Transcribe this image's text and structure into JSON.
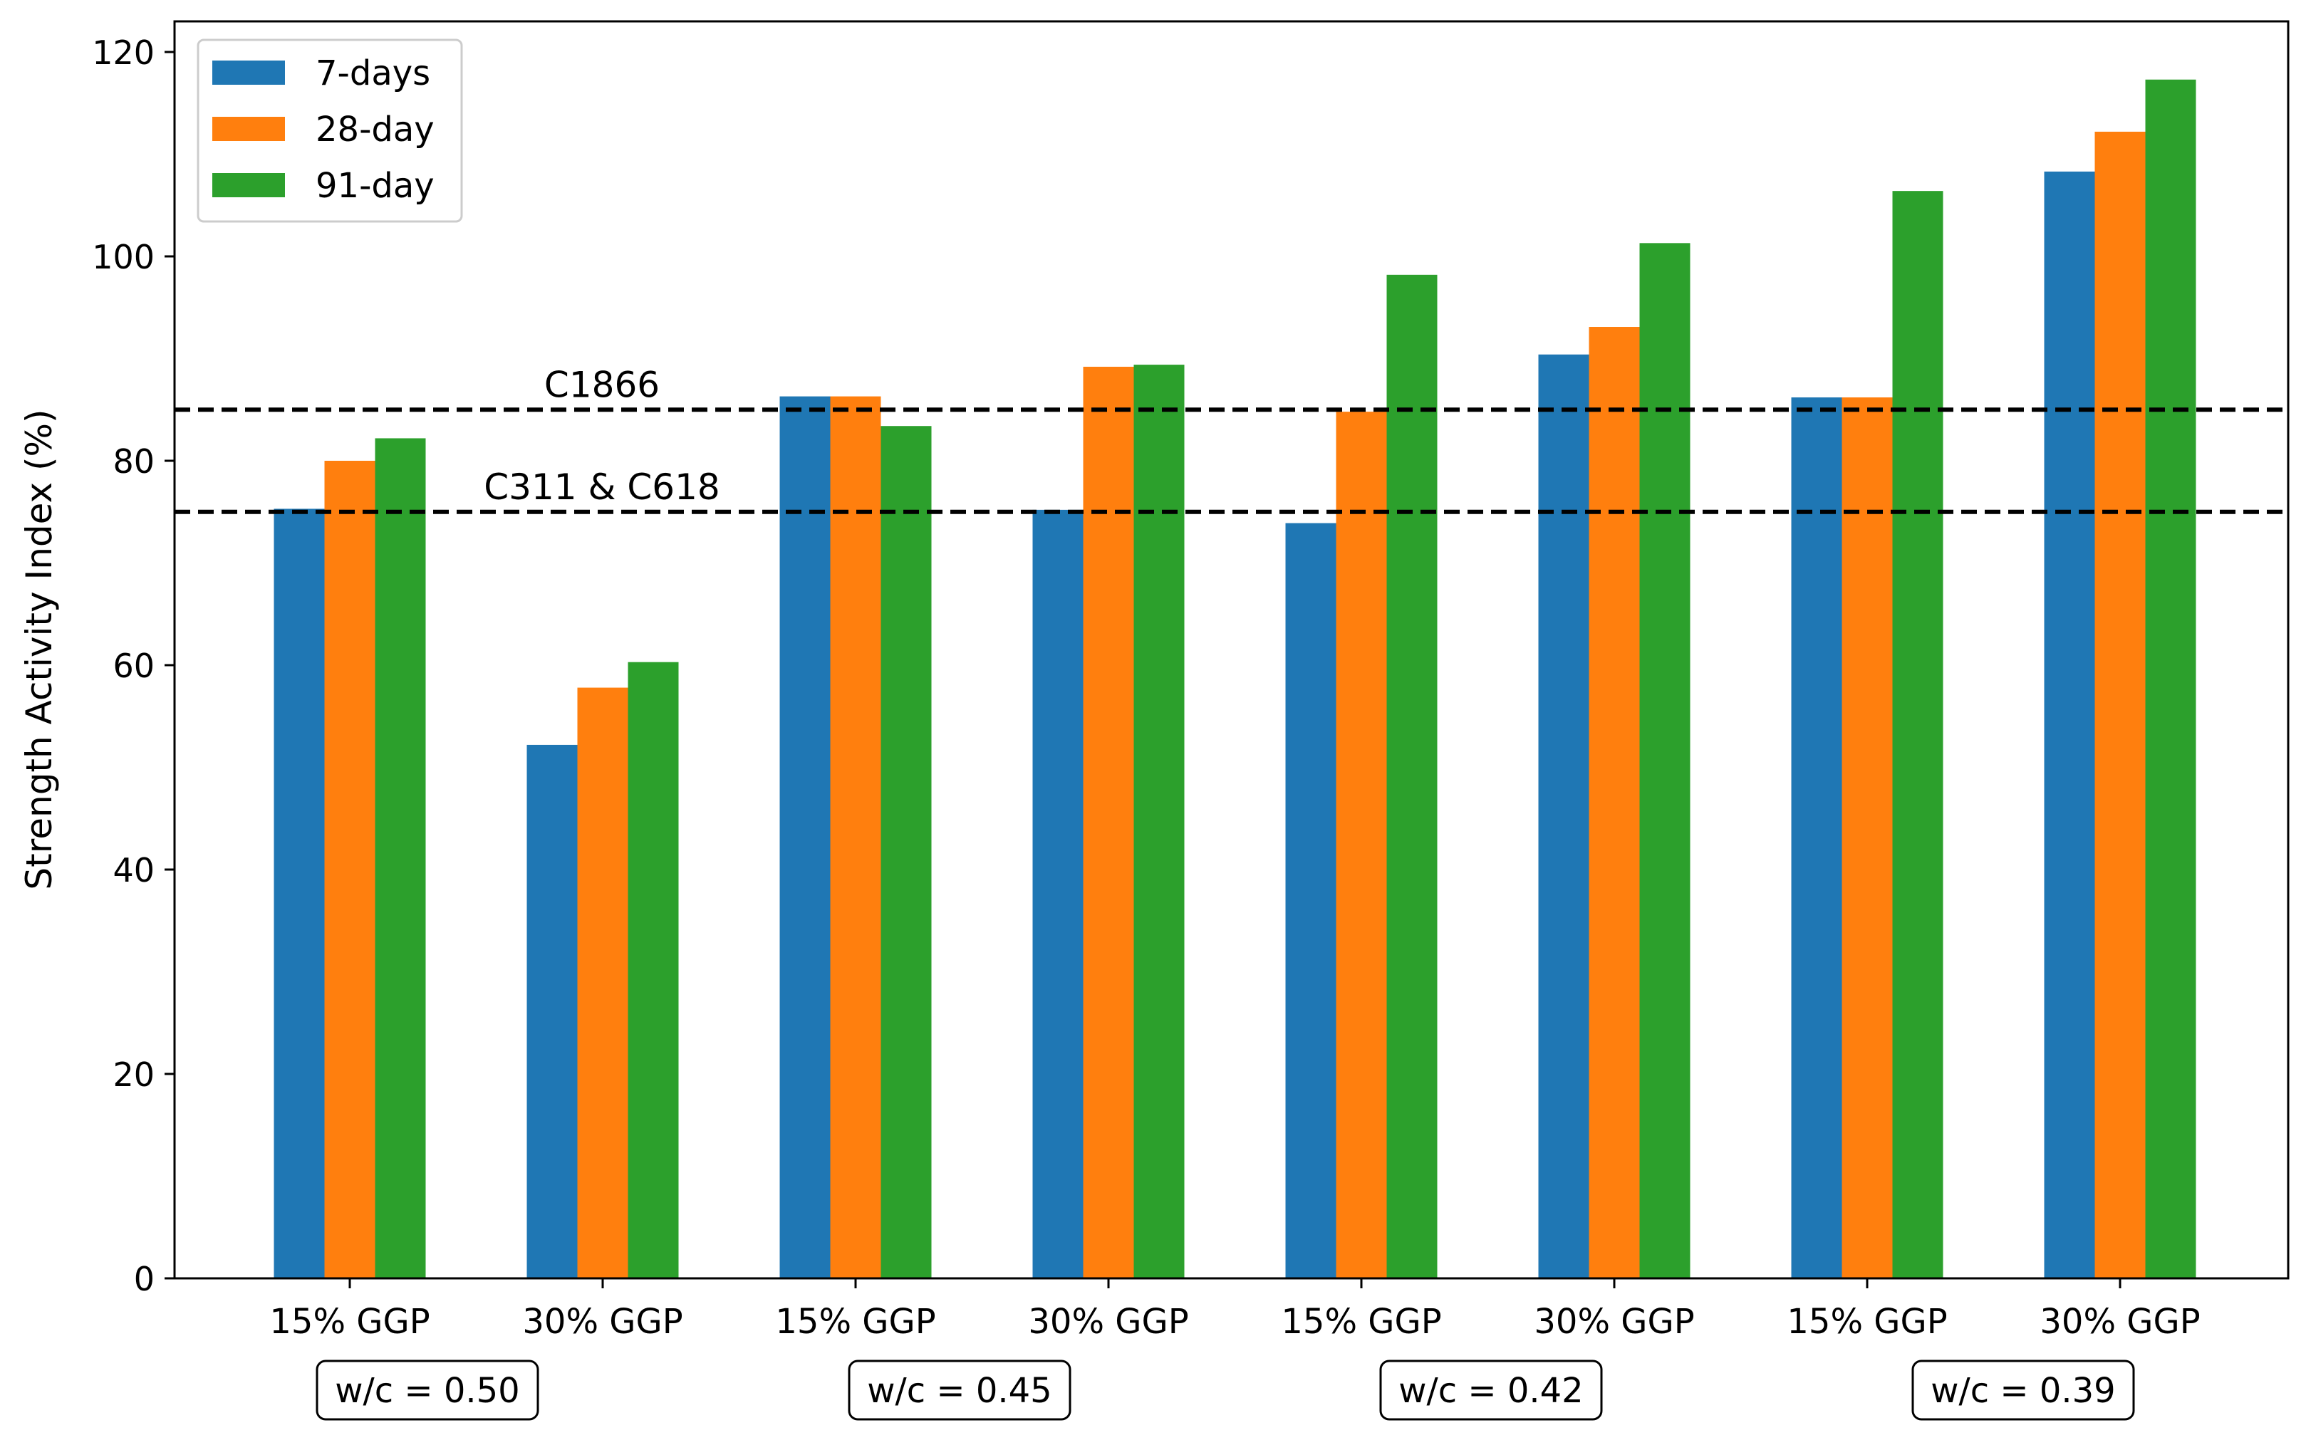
{
  "chart_data": {
    "type": "bar",
    "title": "",
    "xlabel": "",
    "ylabel": "Strength Activity Index (%)",
    "ylim": [
      0,
      123
    ],
    "yticks": [
      0,
      20,
      40,
      60,
      80,
      100,
      120
    ],
    "grid": false,
    "legend_position": "top-left",
    "categories": [
      "15% GGP",
      "30% GGP",
      "15% GGP",
      "30% GGP",
      "15% GGP",
      "30% GGP",
      "15% GGP",
      "30% GGP"
    ],
    "series": [
      {
        "name": "7-days",
        "color": "#1f77b4",
        "values": [
          75.3,
          52.2,
          86.3,
          75.2,
          73.9,
          90.4,
          86.2,
          108.3
        ]
      },
      {
        "name": "28-day",
        "color": "#ff7f0e",
        "values": [
          80.0,
          57.8,
          86.3,
          89.2,
          84.8,
          93.1,
          86.2,
          112.2
        ]
      },
      {
        "name": "91-day",
        "color": "#2ca02c",
        "values": [
          82.2,
          60.3,
          83.4,
          89.4,
          98.2,
          101.3,
          106.4,
          117.3
        ]
      }
    ],
    "reference_lines": [
      {
        "label": "C1866",
        "value": 85
      },
      {
        "label": "C311 & C618",
        "value": 75
      }
    ],
    "group_labels": [
      "w/c = 0.50",
      "w/c = 0.45",
      "w/c = 0.42",
      "w/c = 0.39"
    ]
  }
}
